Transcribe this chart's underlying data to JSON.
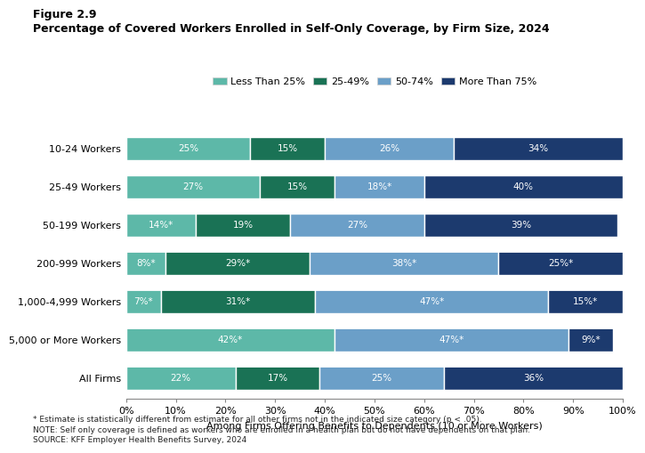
{
  "title_line1": "Figure 2.9",
  "title_line2": "Percentage of Covered Workers Enrolled in Self-Only Coverage, by Firm Size, 2024",
  "xlabel": "Among Firms Offering Benefits to Dependents (10 or More Workers)",
  "categories": [
    "10-24 Workers",
    "25-49 Workers",
    "50-199 Workers",
    "200-999 Workers",
    "1,000-4,999 Workers",
    "5,000 or More Workers",
    "All Firms"
  ],
  "series_labels": [
    "Less Than 25%",
    "25-49%",
    "50-74%",
    "More Than 75%"
  ],
  "colors": [
    "#5db8a8",
    "#1a7255",
    "#6b9fc8",
    "#1c3a6e"
  ],
  "data": [
    [
      25,
      15,
      26,
      34
    ],
    [
      27,
      15,
      18,
      40
    ],
    [
      14,
      19,
      27,
      39
    ],
    [
      8,
      29,
      38,
      25
    ],
    [
      7,
      31,
      47,
      15
    ],
    [
      42,
      0,
      47,
      9
    ],
    [
      22,
      17,
      25,
      36
    ]
  ],
  "labels": [
    [
      "25%",
      "15%",
      "26%",
      "34%"
    ],
    [
      "27%",
      "15%",
      "18%*",
      "40%"
    ],
    [
      "14%*",
      "19%",
      "27%",
      "39%"
    ],
    [
      "8%*",
      "29%*",
      "38%*",
      "25%*"
    ],
    [
      "7%*",
      "31%*",
      "47%*",
      "15%*"
    ],
    [
      "42%*",
      "",
      "47%*",
      "9%*"
    ],
    [
      "22%",
      "17%",
      "25%",
      "36%"
    ]
  ],
  "footnotes": "* Estimate is statistically different from estimate for all other firms not in the indicated size category (p < .05).\nNOTE: Self only coverage is defined as workers who are enrolled in a health plan but do not have dependents on that plan.\nSOURCE: KFF Employer Health Benefits Survey, 2024",
  "background_color": "#ffffff",
  "bar_height": 0.62
}
